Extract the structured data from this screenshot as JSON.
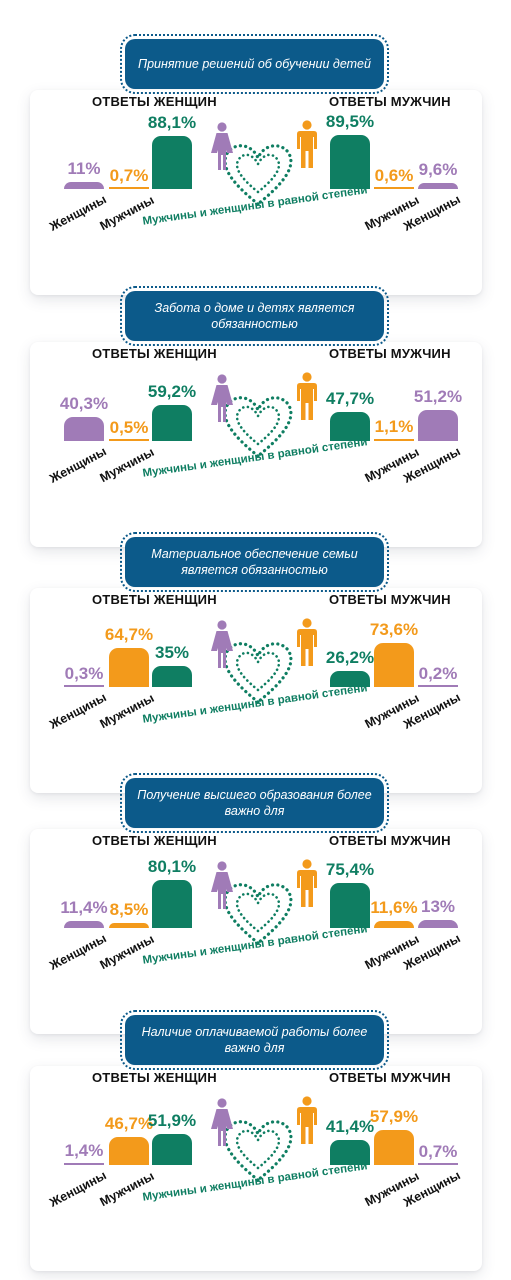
{
  "labels": {
    "women_answers": "ОТВЕТЫ ЖЕНЩИН",
    "men_answers": "ОТВЕТЫ МУЖЧИН",
    "women": "Женщины",
    "men": "Мужчины",
    "equal": "Мужчины и женщины в равной степени"
  },
  "colors": {
    "women": "#a07bb7",
    "men": "#f39a1b",
    "equal": "#0f7e62",
    "topic_bg": "#0c5a8a"
  },
  "icons": [
    "female-figure-icon",
    "male-figure-icon",
    "dotted-heart-icon"
  ],
  "chart_data": [
    {
      "type": "bar",
      "title": "Принятие решений об обучении детей",
      "categories": [
        "Женщины",
        "Мужчины",
        "Мужчины и женщины в равной степени"
      ],
      "series": [
        {
          "name": "ОТВЕТЫ ЖЕНЩИН",
          "values": [
            11,
            0.7,
            88.1
          ],
          "labels": [
            "11%",
            "0,7%",
            "88,1%"
          ]
        },
        {
          "name": "ОТВЕТЫ МУЖЧИН",
          "values": [
            9.6,
            0.6,
            89.5
          ],
          "labels": [
            "9,6%",
            "0,6%",
            "89,5%"
          ]
        }
      ]
    },
    {
      "type": "bar",
      "title": "Забота о доме и детях является обязанностью",
      "categories": [
        "Женщины",
        "Мужчины",
        "Мужчины и женщины в равной степени"
      ],
      "series": [
        {
          "name": "ОТВЕТЫ ЖЕНЩИН",
          "values": [
            40.3,
            0.5,
            59.2
          ],
          "labels": [
            "40,3%",
            "0,5%",
            "59,2%"
          ]
        },
        {
          "name": "ОТВЕТЫ МУЖЧИН",
          "values": [
            51.2,
            1.1,
            47.7
          ],
          "labels": [
            "51,2%",
            "1,1%",
            "47,7%"
          ]
        }
      ]
    },
    {
      "type": "bar",
      "title": "Материальное обеспечение семьи является обязанностью",
      "categories": [
        "Женщины",
        "Мужчины",
        "Мужчины и женщины в равной степени"
      ],
      "series": [
        {
          "name": "ОТВЕТЫ ЖЕНЩИН",
          "values": [
            0.3,
            64.7,
            35
          ],
          "labels": [
            "0,3%",
            "64,7%",
            "35%"
          ]
        },
        {
          "name": "ОТВЕТЫ МУЖЧИН",
          "values": [
            0.2,
            73.6,
            26.2
          ],
          "labels": [
            "0,2%",
            "73,6%",
            "26,2%"
          ]
        }
      ]
    },
    {
      "type": "bar",
      "title": "Получение высшего образования более важно для",
      "categories": [
        "Женщины",
        "Мужчины",
        "Мужчины и женщины в равной степени"
      ],
      "series": [
        {
          "name": "ОТВЕТЫ ЖЕНЩИН",
          "values": [
            11.4,
            8.5,
            80.1
          ],
          "labels": [
            "11,4%",
            "8,5%",
            "80,1%"
          ]
        },
        {
          "name": "ОТВЕТЫ МУЖЧИН",
          "values": [
            13,
            11.6,
            75.4
          ],
          "labels": [
            "13%",
            "11,6%",
            "75,4%"
          ]
        }
      ]
    },
    {
      "type": "bar",
      "title": "Наличие оплачиваемой работы более важно для",
      "categories": [
        "Женщины",
        "Мужчины",
        "Мужчины и женщины в равной степени"
      ],
      "series": [
        {
          "name": "ОТВЕТЫ ЖЕНЩИН",
          "values": [
            1.4,
            46.7,
            51.9
          ],
          "labels": [
            "1,4%",
            "46,7%",
            "51,9%"
          ]
        },
        {
          "name": "ОТВЕТЫ МУЖЧИН",
          "values": [
            0.7,
            57.9,
            41.4
          ],
          "labels": [
            "0,7%",
            "57,9%",
            "41,4%"
          ]
        }
      ]
    }
  ]
}
